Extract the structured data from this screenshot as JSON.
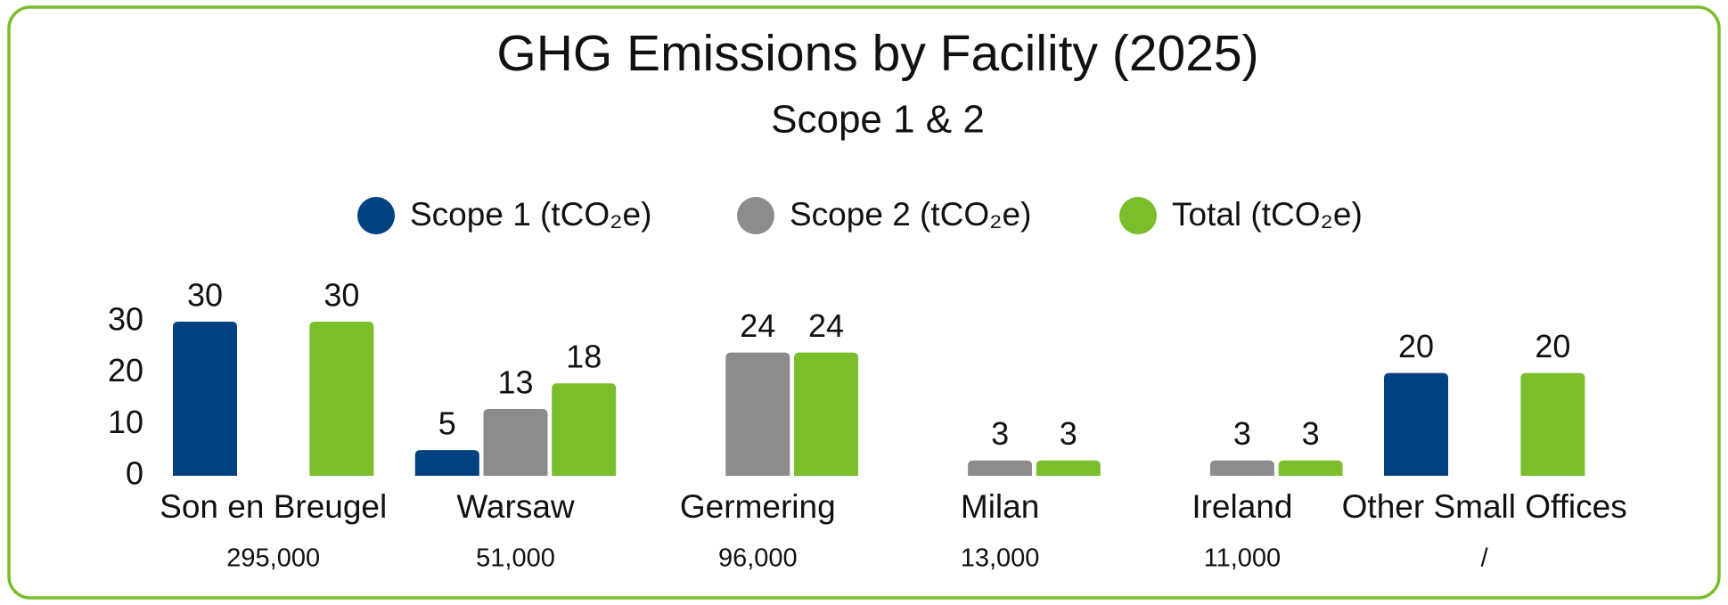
{
  "chart_data": {
    "type": "bar",
    "title": "GHG Emissions by Facility (2025)",
    "subtitle": "Scope 1 & 2",
    "categories": [
      "Son en Breugel",
      "Warsaw",
      "Germering",
      "Milan",
      "Ireland",
      "Other Small Offices"
    ],
    "category_notes": [
      "295,000",
      "51,000",
      "96,000",
      "13,000",
      "11,000",
      "/"
    ],
    "series": [
      {
        "name": "Scope 1 (tCO₂e)",
        "color": "#00427f",
        "values": [
          30,
          5,
          null,
          null,
          null,
          20
        ]
      },
      {
        "name": "Scope 2 (tCO₂e)",
        "color": "#8c8c8c",
        "values": [
          null,
          13,
          24,
          3,
          3,
          null
        ]
      },
      {
        "name": "Total (tCO₂e)",
        "color": "#7bbe2b",
        "values": [
          30,
          18,
          24,
          3,
          3,
          20
        ]
      }
    ],
    "ylim": [
      0,
      30
    ],
    "yticks": [
      0,
      10,
      20,
      30
    ],
    "grid": false,
    "legend": "top"
  }
}
